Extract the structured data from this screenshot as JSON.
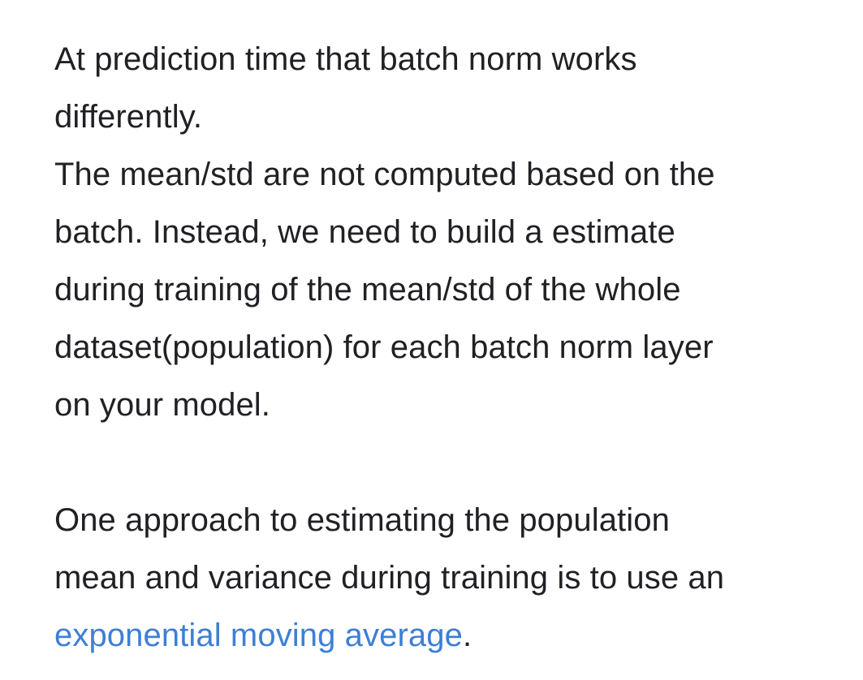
{
  "paragraph1": {
    "lines": [
      "At prediction time that batch norm works",
      "differently.",
      "The mean/std are not computed based on the",
      "batch. Instead, we need to build a estimate",
      "during training of the mean/std of the whole",
      "dataset(population) for each batch norm layer",
      "on your model."
    ]
  },
  "paragraph2": {
    "lines": [
      "One approach to estimating the population",
      "mean and variance during training is to use an"
    ],
    "link_text": "exponential moving average",
    "trailing": "."
  },
  "colors": {
    "text": "#202124",
    "link": "#3d7fd6",
    "background": "#ffffff"
  }
}
